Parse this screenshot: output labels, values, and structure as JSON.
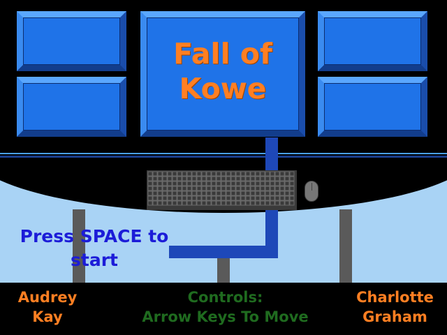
{
  "game": {
    "title": "Fall of\nKowe",
    "prompt": "Press SPACE to start",
    "credits": {
      "left": "Audrey Kay",
      "right": "Charlotte Graham"
    },
    "controls": {
      "heading": "Controls:",
      "text": "Arrow Keys To Move"
    }
  },
  "colors": {
    "title": "#ff7f22",
    "prompt": "#1c1cd8",
    "controls": "#1f6b1f",
    "monitor": "#1f73e8",
    "floor": "#a9d3f5"
  },
  "scene": {
    "monitors": [
      "top-left-monitor",
      "bottom-left-monitor",
      "main-monitor",
      "top-right-monitor",
      "bottom-right-monitor"
    ],
    "props": [
      "keyboard-icon",
      "mouse-icon",
      "cable"
    ]
  }
}
